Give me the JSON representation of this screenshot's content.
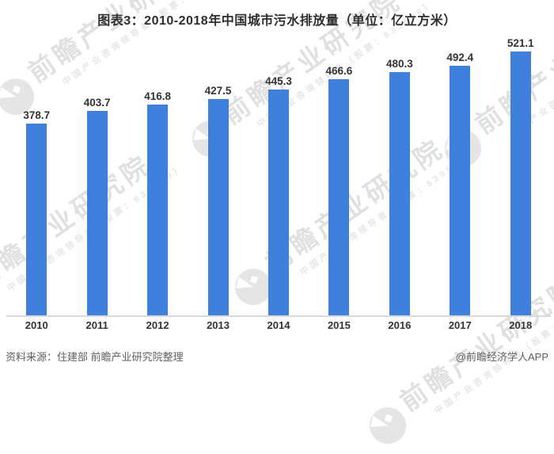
{
  "title": "图表3：2010-2018年中国城市污水排放量（单位：亿立方米）",
  "chart_data": {
    "type": "bar",
    "title": "图表3：2010-2018年中国城市污水排放量（单位：亿立方米）",
    "categories": [
      "2010",
      "2011",
      "2012",
      "2013",
      "2014",
      "2015",
      "2016",
      "2017",
      "2018"
    ],
    "values": [
      378.7,
      403.7,
      416.8,
      427.5,
      445.3,
      466.6,
      480.3,
      492.4,
      521.1
    ],
    "unit": "亿立方米",
    "xlabel": "",
    "ylabel": "",
    "ylim": [
      0,
      550
    ],
    "grid": false,
    "legend": "none",
    "data_labels": true,
    "bar_color": "#3F80DD",
    "label_color": "#333333",
    "axis_line_color": "#d9d9d9"
  },
  "watermark": {
    "logo": "qianzhan-logo-icon",
    "text": "前瞻产业研究院",
    "subtext": "中国产业咨询领导者（股票：839599）"
  },
  "footer": {
    "source": "资料来源：住建部 前瞻产业研究院整理",
    "credit": "@前瞻经济学人APP"
  }
}
